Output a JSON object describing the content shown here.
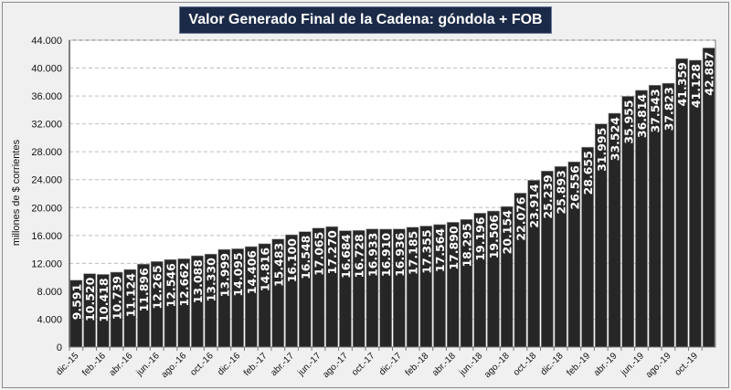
{
  "chart_data": {
    "type": "bar",
    "title": "Valor Generado Final de la Cadena: góndola + FOB",
    "ylabel": "millones de $ corrientes",
    "xlabel": "",
    "ylim": [
      0,
      44000
    ],
    "yticks": [
      "0",
      "4.000",
      "8.000",
      "12.000",
      "16.000",
      "20.000",
      "24.000",
      "28.000",
      "32.000",
      "36.000",
      "40.000",
      "44.000"
    ],
    "grid": true,
    "bar_color": "#262626",
    "categories": [
      "dic.-15",
      "ene.-16",
      "feb.-16",
      "mar.-16",
      "abr.-16",
      "may.-16",
      "jun.-16",
      "jul.-16",
      "ago.-16",
      "sep.-16",
      "oct.-16",
      "nov.-16",
      "dic.-16",
      "ene.-17",
      "feb.-17",
      "mar.-17",
      "abr.-17",
      "may.-17",
      "jun.-17",
      "jul.-17",
      "ago.-17",
      "sep.-17",
      "oct.-17",
      "nov.-17",
      "dic.-17",
      "ene.-18",
      "feb.-18",
      "mar.-18",
      "abr.-18",
      "may.-18",
      "jun.-18",
      "jul.-18",
      "ago.-18",
      "sep.-18",
      "oct.-18",
      "nov.-18",
      "dic.-18",
      "ene.-19",
      "feb.-19",
      "mar.-19",
      "abr.-19",
      "may.-19",
      "jun.-19",
      "jul.-19",
      "ago.-19",
      "sep.-19",
      "oct.-19",
      "nov.-19"
    ],
    "visible_tick_labels": [
      "dic.-15",
      "feb.-16",
      "abr.-16",
      "jun.-16",
      "ago.-16",
      "oct.-16",
      "dic.-16",
      "feb.-17",
      "abr.-17",
      "jun.-17",
      "ago.-17",
      "oct.-17",
      "dic.-17",
      "feb.-18",
      "abr.-18",
      "jun.-18",
      "ago.-18",
      "oct.-18",
      "dic.-18",
      "feb.-19",
      "abr.-19",
      "jun.-19",
      "ago.-19",
      "oct.-19"
    ],
    "values": [
      9591,
      10520,
      10418,
      10739,
      11124,
      11896,
      12265,
      12546,
      12662,
      13088,
      13330,
      13999,
      14095,
      14406,
      14816,
      15483,
      16100,
      16548,
      17065,
      17270,
      16684,
      16728,
      16933,
      16910,
      16936,
      17185,
      17355,
      17564,
      17890,
      18295,
      19196,
      19506,
      20154,
      22076,
      23914,
      25239,
      25893,
      26556,
      28655,
      31995,
      33524,
      35955,
      36814,
      37543,
      37823,
      41359,
      41128,
      42887
    ],
    "data_labels": [
      "9.591",
      "10.520",
      "10.418",
      "10.739",
      "11.124",
      "11.896",
      "12.265",
      "12.546",
      "12.662",
      "13.088",
      "13.330",
      "13.999",
      "14.095",
      "14.406",
      "14.816",
      "15.483",
      "16.100",
      "16.548",
      "17.065",
      "17.270",
      "16.684",
      "16.728",
      "16.933",
      "16.910",
      "16.936",
      "17.185",
      "17.355",
      "17.564",
      "17.890",
      "18.295",
      "19.196",
      "19.506",
      "20.154",
      "22.076",
      "23.914",
      "25.239",
      "25.893",
      "26.556",
      "28.655",
      "31.995",
      "33.524",
      "35.955",
      "36.814",
      "37.543",
      "37.823",
      "41.359",
      "41.128",
      "42.887"
    ]
  }
}
